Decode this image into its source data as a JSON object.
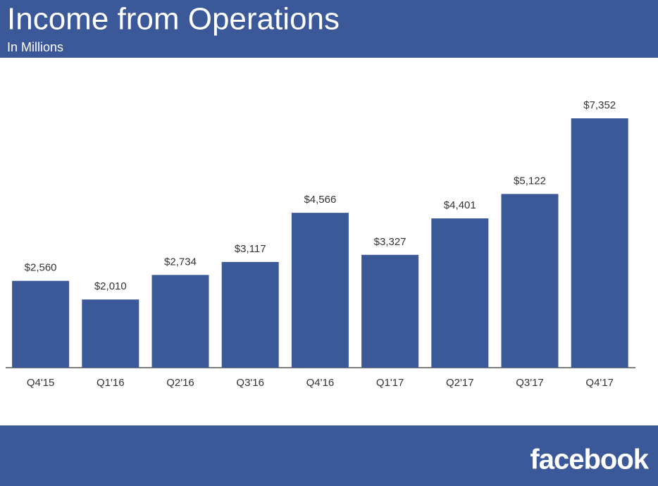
{
  "chart_data": {
    "type": "bar",
    "title": "Income from Operations",
    "subtitle": "In Millions",
    "categories": [
      "Q4'15",
      "Q1'16",
      "Q2'16",
      "Q3'16",
      "Q4'16",
      "Q1'17",
      "Q2'17",
      "Q3'17",
      "Q4'17"
    ],
    "values": [
      2560,
      2010,
      2734,
      3117,
      4566,
      3327,
      4401,
      5122,
      7352
    ],
    "value_labels": [
      "$2,560",
      "$2,010",
      "$2,734",
      "$3,117",
      "$4,566",
      "$3,327",
      "$4,401",
      "$5,122",
      "$7,352"
    ],
    "color": "#3b5998"
  },
  "footer": {
    "logo": "facebook"
  }
}
